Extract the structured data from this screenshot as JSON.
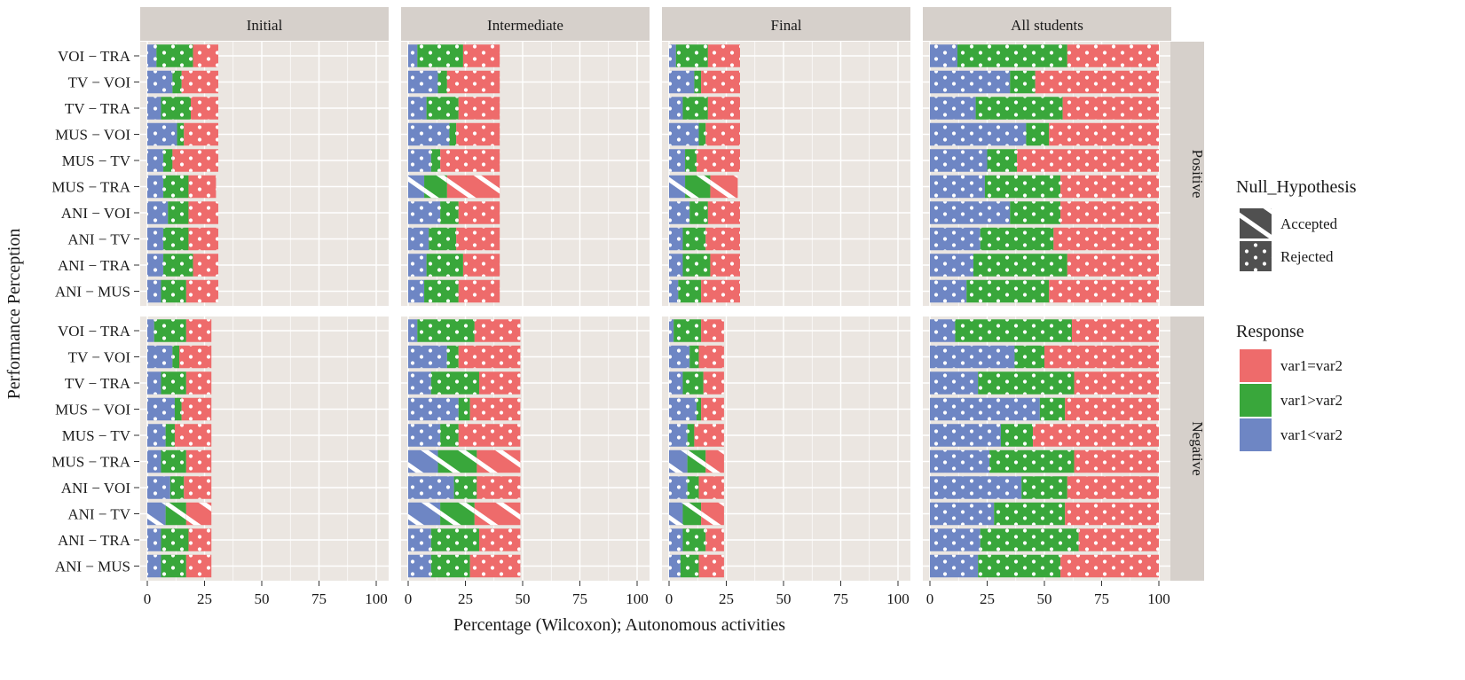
{
  "chart_data": {
    "type": "bar",
    "orientation": "horizontal",
    "stacked": true,
    "xlabel": "Percentage (Wilcoxon); Autonomous activities",
    "ylabel": "Performance Perception",
    "xlim": [
      0,
      100
    ],
    "x_ticks": [
      "0",
      "25",
      "50",
      "75",
      "100"
    ],
    "column_panels": [
      "Initial",
      "Intermediate",
      "Final",
      "All students"
    ],
    "row_panels": [
      "Positive",
      "Negative"
    ],
    "categories": [
      "VOI − TRA",
      "TV − VOI",
      "TV − TRA",
      "MUS − VOI",
      "MUS − TV",
      "MUS − TRA",
      "ANI − VOI",
      "ANI − TV",
      "ANI − TRA",
      "ANI − MUS"
    ],
    "stack_order": [
      "var1<var2",
      "var1>var2",
      "var1=var2"
    ],
    "grid": true,
    "legend_placement": "right",
    "legend": {
      "pattern_title": "Null_Hypothesis",
      "pattern_items": [
        "Accepted",
        "Rejected"
      ],
      "fill_title": "Response",
      "fill_items": [
        "var1=var2",
        "var1>var2",
        "var1<var2"
      ]
    },
    "colors": {
      "var1=var2": "#ee6b6b",
      "var1>var2": "#39a73b",
      "var1<var2": "#6e86c4",
      "panel_bg": "#ebe6e1",
      "strip_bg": "#d6d0cb",
      "grid": "#ffffff",
      "legend_pattern_bg": "#505050"
    },
    "panels": [
      {
        "row": "Positive",
        "col": "Initial",
        "rows": [
          {
            "category": "VOI − TRA",
            "var1<var2": 4,
            "var1>var2": 16,
            "var1=var2": 11,
            "null": "Rejected"
          },
          {
            "category": "TV − VOI",
            "var1<var2": 11,
            "var1>var2": 4,
            "var1=var2": 16,
            "null": "Rejected"
          },
          {
            "category": "TV − TRA",
            "var1<var2": 6,
            "var1>var2": 13,
            "var1=var2": 12,
            "null": "Rejected"
          },
          {
            "category": "MUS − VOI",
            "var1<var2": 13,
            "var1>var2": 3,
            "var1=var2": 15,
            "null": "Rejected"
          },
          {
            "category": "MUS − TV",
            "var1<var2": 7,
            "var1>var2": 4,
            "var1=var2": 20,
            "null": "Rejected"
          },
          {
            "category": "MUS − TRA",
            "var1<var2": 7,
            "var1>var2": 11,
            "var1=var2": 12,
            "null": "Rejected"
          },
          {
            "category": "ANI − VOI",
            "var1<var2": 9,
            "var1>var2": 9,
            "var1=var2": 13,
            "null": "Rejected"
          },
          {
            "category": "ANI − TV",
            "var1<var2": 7,
            "var1>var2": 11,
            "var1=var2": 13,
            "null": "Rejected"
          },
          {
            "category": "ANI − TRA",
            "var1<var2": 7,
            "var1>var2": 13,
            "var1=var2": 11,
            "null": "Rejected"
          },
          {
            "category": "ANI − MUS",
            "var1<var2": 6,
            "var1>var2": 11,
            "var1=var2": 14,
            "null": "Rejected"
          }
        ]
      },
      {
        "row": "Positive",
        "col": "Intermediate",
        "rows": [
          {
            "category": "VOI − TRA",
            "var1<var2": 4,
            "var1>var2": 20,
            "var1=var2": 16,
            "null": "Rejected"
          },
          {
            "category": "TV − VOI",
            "var1<var2": 13,
            "var1>var2": 4,
            "var1=var2": 23,
            "null": "Rejected"
          },
          {
            "category": "TV − TRA",
            "var1<var2": 8,
            "var1>var2": 14,
            "var1=var2": 18,
            "null": "Rejected"
          },
          {
            "category": "MUS − VOI",
            "var1<var2": 18,
            "var1>var2": 3,
            "var1=var2": 19,
            "null": "Rejected"
          },
          {
            "category": "MUS − TV",
            "var1<var2": 10,
            "var1>var2": 4,
            "var1=var2": 26,
            "null": "Rejected"
          },
          {
            "category": "MUS − TRA",
            "var1<var2": 7,
            "var1>var2": 10,
            "var1=var2": 23,
            "null": "Accepted"
          },
          {
            "category": "ANI − VOI",
            "var1<var2": 14,
            "var1>var2": 8,
            "var1=var2": 18,
            "null": "Rejected"
          },
          {
            "category": "ANI − TV",
            "var1<var2": 9,
            "var1>var2": 12,
            "var1=var2": 19,
            "null": "Rejected"
          },
          {
            "category": "ANI − TRA",
            "var1<var2": 8,
            "var1>var2": 16,
            "var1=var2": 16,
            "null": "Rejected"
          },
          {
            "category": "ANI − MUS",
            "var1<var2": 7,
            "var1>var2": 15,
            "var1=var2": 18,
            "null": "Rejected"
          }
        ]
      },
      {
        "row": "Positive",
        "col": "Final",
        "rows": [
          {
            "category": "VOI − TRA",
            "var1<var2": 3,
            "var1>var2": 14,
            "var1=var2": 14,
            "null": "Rejected"
          },
          {
            "category": "TV − VOI",
            "var1<var2": 11,
            "var1>var2": 3,
            "var1=var2": 17,
            "null": "Rejected"
          },
          {
            "category": "TV − TRA",
            "var1<var2": 6,
            "var1>var2": 11,
            "var1=var2": 14,
            "null": "Rejected"
          },
          {
            "category": "MUS − VOI",
            "var1<var2": 13,
            "var1>var2": 3,
            "var1=var2": 15,
            "null": "Rejected"
          },
          {
            "category": "MUS − TV",
            "var1<var2": 7,
            "var1>var2": 5,
            "var1=var2": 19,
            "null": "Rejected"
          },
          {
            "category": "MUS − TRA",
            "var1<var2": 7,
            "var1>var2": 11,
            "var1=var2": 12,
            "null": "Accepted"
          },
          {
            "category": "ANI − VOI",
            "var1<var2": 9,
            "var1>var2": 8,
            "var1=var2": 14,
            "null": "Rejected"
          },
          {
            "category": "ANI − TV",
            "var1<var2": 6,
            "var1>var2": 10,
            "var1=var2": 15,
            "null": "Rejected"
          },
          {
            "category": "ANI − TRA",
            "var1<var2": 6,
            "var1>var2": 12,
            "var1=var2": 13,
            "null": "Rejected"
          },
          {
            "category": "ANI − MUS",
            "var1<var2": 4,
            "var1>var2": 10,
            "var1=var2": 17,
            "null": "Rejected"
          }
        ]
      },
      {
        "row": "Positive",
        "col": "All students",
        "rows": [
          {
            "category": "VOI − TRA",
            "var1<var2": 12,
            "var1>var2": 48,
            "var1=var2": 40,
            "null": "Rejected"
          },
          {
            "category": "TV − VOI",
            "var1<var2": 35,
            "var1>var2": 11,
            "var1=var2": 54,
            "null": "Rejected"
          },
          {
            "category": "TV − TRA",
            "var1<var2": 20,
            "var1>var2": 38,
            "var1=var2": 42,
            "null": "Rejected"
          },
          {
            "category": "MUS − VOI",
            "var1<var2": 42,
            "var1>var2": 10,
            "var1=var2": 48,
            "null": "Rejected"
          },
          {
            "category": "MUS − TV",
            "var1<var2": 25,
            "var1>var2": 13,
            "var1=var2": 62,
            "null": "Rejected"
          },
          {
            "category": "MUS − TRA",
            "var1<var2": 24,
            "var1>var2": 33,
            "var1=var2": 43,
            "null": "Rejected"
          },
          {
            "category": "ANI − VOI",
            "var1<var2": 35,
            "var1>var2": 22,
            "var1=var2": 43,
            "null": "Rejected"
          },
          {
            "category": "ANI − TV",
            "var1<var2": 22,
            "var1>var2": 32,
            "var1=var2": 46,
            "null": "Rejected"
          },
          {
            "category": "ANI − TRA",
            "var1<var2": 19,
            "var1>var2": 41,
            "var1=var2": 40,
            "null": "Rejected"
          },
          {
            "category": "ANI − MUS",
            "var1<var2": 16,
            "var1>var2": 36,
            "var1=var2": 48,
            "null": "Rejected"
          }
        ]
      },
      {
        "row": "Negative",
        "col": "Initial",
        "rows": [
          {
            "category": "VOI − TRA",
            "var1<var2": 3,
            "var1>var2": 14,
            "var1=var2": 11,
            "null": "Rejected"
          },
          {
            "category": "TV − VOI",
            "var1<var2": 11,
            "var1>var2": 3,
            "var1=var2": 14,
            "null": "Rejected"
          },
          {
            "category": "TV − TRA",
            "var1<var2": 6,
            "var1>var2": 11,
            "var1=var2": 11,
            "null": "Rejected"
          },
          {
            "category": "MUS − VOI",
            "var1<var2": 12,
            "var1>var2": 3,
            "var1=var2": 13,
            "null": "Rejected"
          },
          {
            "category": "MUS − TV",
            "var1<var2": 8,
            "var1>var2": 4,
            "var1=var2": 16,
            "null": "Rejected"
          },
          {
            "category": "MUS − TRA",
            "var1<var2": 6,
            "var1>var2": 11,
            "var1=var2": 11,
            "null": "Rejected"
          },
          {
            "category": "ANI − VOI",
            "var1<var2": 10,
            "var1>var2": 6,
            "var1=var2": 12,
            "null": "Rejected"
          },
          {
            "category": "ANI − TV",
            "var1<var2": 8,
            "var1>var2": 9,
            "var1=var2": 11,
            "null": "Accepted"
          },
          {
            "category": "ANI − TRA",
            "var1<var2": 6,
            "var1>var2": 12,
            "var1=var2": 10,
            "null": "Rejected"
          },
          {
            "category": "ANI − MUS",
            "var1<var2": 6,
            "var1>var2": 11,
            "var1=var2": 11,
            "null": "Rejected"
          }
        ]
      },
      {
        "row": "Negative",
        "col": "Intermediate",
        "rows": [
          {
            "category": "VOI − TRA",
            "var1<var2": 4,
            "var1>var2": 25,
            "var1=var2": 20,
            "null": "Rejected"
          },
          {
            "category": "TV − VOI",
            "var1<var2": 17,
            "var1>var2": 5,
            "var1=var2": 27,
            "null": "Rejected"
          },
          {
            "category": "TV − TRA",
            "var1<var2": 10,
            "var1>var2": 21,
            "var1=var2": 18,
            "null": "Rejected"
          },
          {
            "category": "MUS − VOI",
            "var1<var2": 22,
            "var1>var2": 5,
            "var1=var2": 22,
            "null": "Rejected"
          },
          {
            "category": "MUS − TV",
            "var1<var2": 14,
            "var1>var2": 8,
            "var1=var2": 27,
            "null": "Rejected"
          },
          {
            "category": "MUS − TRA",
            "var1<var2": 13,
            "var1>var2": 17,
            "var1=var2": 19,
            "null": "Accepted"
          },
          {
            "category": "ANI − VOI",
            "var1<var2": 20,
            "var1>var2": 10,
            "var1=var2": 19,
            "null": "Rejected"
          },
          {
            "category": "ANI − TV",
            "var1<var2": 14,
            "var1>var2": 15,
            "var1=var2": 20,
            "null": "Accepted"
          },
          {
            "category": "ANI − TRA",
            "var1<var2": 10,
            "var1>var2": 21,
            "var1=var2": 18,
            "null": "Rejected"
          },
          {
            "category": "ANI − MUS",
            "var1<var2": 10,
            "var1>var2": 17,
            "var1=var2": 22,
            "null": "Rejected"
          }
        ]
      },
      {
        "row": "Negative",
        "col": "Final",
        "rows": [
          {
            "category": "VOI − TRA",
            "var1<var2": 2,
            "var1>var2": 12,
            "var1=var2": 10,
            "null": "Rejected"
          },
          {
            "category": "TV − VOI",
            "var1<var2": 9,
            "var1>var2": 4,
            "var1=var2": 11,
            "null": "Rejected"
          },
          {
            "category": "TV − TRA",
            "var1<var2": 6,
            "var1>var2": 9,
            "var1=var2": 9,
            "null": "Rejected"
          },
          {
            "category": "MUS − VOI",
            "var1<var2": 12,
            "var1>var2": 2,
            "var1=var2": 10,
            "null": "Rejected"
          },
          {
            "category": "MUS − TV",
            "var1<var2": 8,
            "var1>var2": 3,
            "var1=var2": 13,
            "null": "Rejected"
          },
          {
            "category": "MUS − TRA",
            "var1<var2": 8,
            "var1>var2": 8,
            "var1=var2": 8,
            "null": "Accepted"
          },
          {
            "category": "ANI − VOI",
            "var1<var2": 8,
            "var1>var2": 5,
            "var1=var2": 11,
            "null": "Rejected"
          },
          {
            "category": "ANI − TV",
            "var1<var2": 6,
            "var1>var2": 8,
            "var1=var2": 10,
            "null": "Accepted"
          },
          {
            "category": "ANI − TRA",
            "var1<var2": 6,
            "var1>var2": 10,
            "var1=var2": 8,
            "null": "Rejected"
          },
          {
            "category": "ANI − MUS",
            "var1<var2": 5,
            "var1>var2": 8,
            "var1=var2": 11,
            "null": "Rejected"
          }
        ]
      },
      {
        "row": "Negative",
        "col": "All students",
        "rows": [
          {
            "category": "VOI − TRA",
            "var1<var2": 11,
            "var1>var2": 51,
            "var1=var2": 38,
            "null": "Rejected"
          },
          {
            "category": "TV − VOI",
            "var1<var2": 37,
            "var1>var2": 13,
            "var1=var2": 50,
            "null": "Rejected"
          },
          {
            "category": "TV − TRA",
            "var1<var2": 21,
            "var1>var2": 42,
            "var1=var2": 37,
            "null": "Rejected"
          },
          {
            "category": "MUS − VOI",
            "var1<var2": 48,
            "var1>var2": 11,
            "var1=var2": 41,
            "null": "Rejected"
          },
          {
            "category": "MUS − TV",
            "var1<var2": 31,
            "var1>var2": 14,
            "var1=var2": 55,
            "null": "Rejected"
          },
          {
            "category": "MUS − TRA",
            "var1<var2": 26,
            "var1>var2": 37,
            "var1=var2": 37,
            "null": "Rejected"
          },
          {
            "category": "ANI − VOI",
            "var1<var2": 40,
            "var1>var2": 20,
            "var1=var2": 40,
            "null": "Rejected"
          },
          {
            "category": "ANI − TV",
            "var1<var2": 28,
            "var1>var2": 31,
            "var1=var2": 41,
            "null": "Rejected"
          },
          {
            "category": "ANI − TRA",
            "var1<var2": 22,
            "var1>var2": 43,
            "var1=var2": 35,
            "null": "Rejected"
          },
          {
            "category": "ANI − MUS",
            "var1<var2": 21,
            "var1>var2": 36,
            "var1=var2": 43,
            "null": "Rejected"
          }
        ]
      }
    ]
  }
}
